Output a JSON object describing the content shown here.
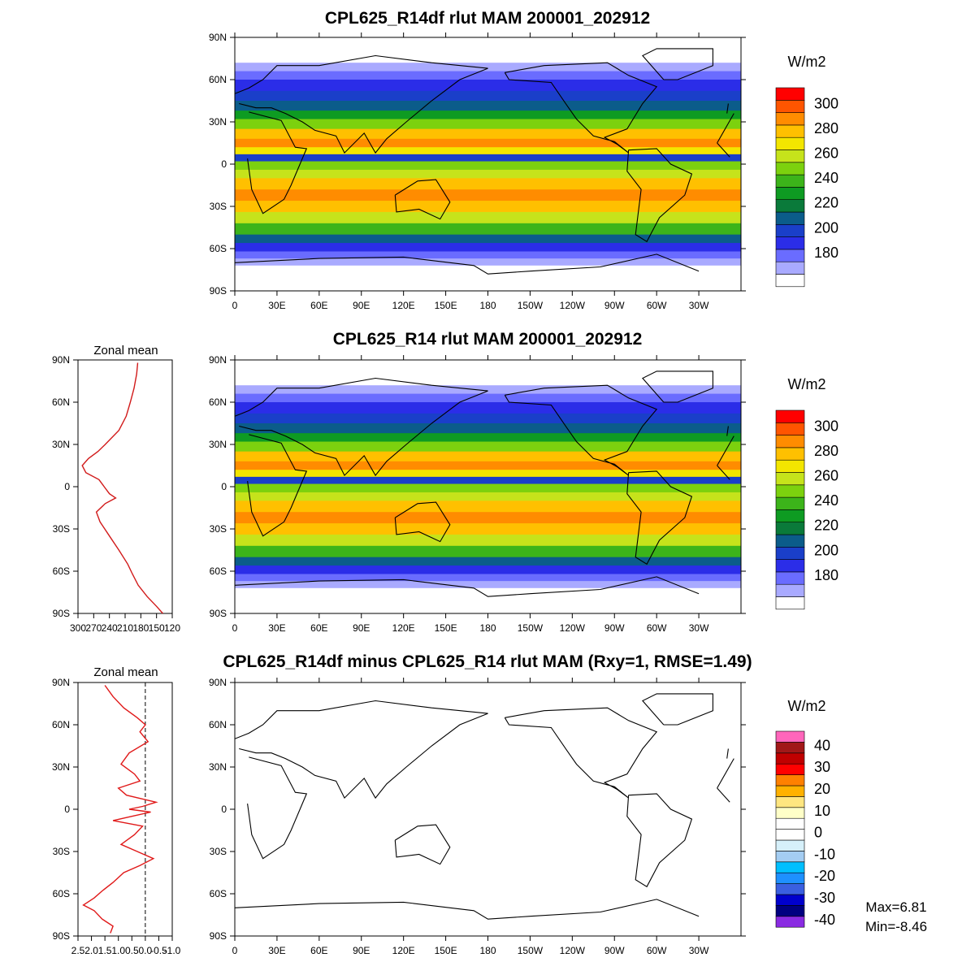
{
  "chart_data": [
    {
      "type": "heatmap",
      "title": "CPL625_R14df rlut MAM 200001_202912",
      "units": "W/m2",
      "lat_ticks": [
        "90N",
        "60N",
        "30N",
        "0",
        "30S",
        "60S",
        "90S"
      ],
      "lon_ticks": [
        "0",
        "30E",
        "60E",
        "90E",
        "120E",
        "150E",
        "180",
        "150W",
        "120W",
        "90W",
        "60W",
        "30W"
      ],
      "colorbar": {
        "labels": [
          "300",
          "280",
          "260",
          "240",
          "220",
          "200",
          "180"
        ],
        "colors": [
          "#ffffff",
          "#a9aaff",
          "#6a6cff",
          "#2b2de8",
          "#1a3fc9",
          "#0b5c8a",
          "#0a7a3a",
          "#0e9b22",
          "#3cb41a",
          "#7cd10e",
          "#c6e31b",
          "#f3e600",
          "#ffc000",
          "#ff8c00",
          "#ff5500",
          "#ff0000"
        ]
      }
    },
    {
      "type": "heatmap",
      "title": "CPL625_R14 rlut MAM 200001_202912",
      "units": "W/m2",
      "lat_ticks": [
        "90N",
        "60N",
        "30N",
        "0",
        "30S",
        "60S",
        "90S"
      ],
      "lon_ticks": [
        "0",
        "30E",
        "60E",
        "90E",
        "120E",
        "150E",
        "180",
        "150W",
        "120W",
        "90W",
        "60W",
        "30W"
      ],
      "colorbar": {
        "labels": [
          "300",
          "280",
          "260",
          "240",
          "220",
          "200",
          "180"
        ],
        "colors": [
          "#ffffff",
          "#a9aaff",
          "#6a6cff",
          "#2b2de8",
          "#1a3fc9",
          "#0b5c8a",
          "#0a7a3a",
          "#0e9b22",
          "#3cb41a",
          "#7cd10e",
          "#c6e31b",
          "#f3e600",
          "#ffc000",
          "#ff8c00",
          "#ff5500",
          "#ff0000"
        ]
      }
    },
    {
      "type": "line",
      "title": "Zonal mean",
      "x_ticks": [
        "300",
        "270",
        "240",
        "210",
        "180",
        "150",
        "120"
      ],
      "y_ticks": [
        "90N",
        "60N",
        "30N",
        "0",
        "30S",
        "60S",
        "90S"
      ],
      "xlim": [
        300,
        120
      ],
      "ylim": [
        -90,
        90
      ],
      "series": [
        {
          "color": "#d11a1a",
          "lat": [
            88,
            80,
            70,
            60,
            50,
            40,
            30,
            25,
            20,
            15,
            10,
            5,
            0,
            -5,
            -8,
            -12,
            -18,
            -25,
            -35,
            -45,
            -55,
            -62,
            -70,
            -78,
            -85,
            -90
          ],
          "value": [
            186,
            188,
            193,
            200,
            208,
            222,
            248,
            262,
            280,
            292,
            285,
            260,
            250,
            240,
            228,
            248,
            265,
            258,
            240,
            222,
            205,
            196,
            185,
            168,
            150,
            138
          ]
        }
      ]
    },
    {
      "type": "heatmap",
      "title": "CPL625_R14df minus CPL625_R14 rlut MAM (Rxy=1, RMSE=1.49)",
      "units": "W/m2",
      "lat_ticks": [
        "90N",
        "60N",
        "30N",
        "0",
        "30S",
        "60S",
        "90S"
      ],
      "lon_ticks": [
        "0",
        "30E",
        "60E",
        "90E",
        "120E",
        "150E",
        "180",
        "150W",
        "120W",
        "90W",
        "60W",
        "30W"
      ],
      "colorbar": {
        "labels": [
          "40",
          "30",
          "20",
          "10",
          "0",
          "-10",
          "-20",
          "-30",
          "-40"
        ],
        "colors": [
          "#8a2be2",
          "#000080",
          "#0000cd",
          "#3a5fe0",
          "#1e90ff",
          "#00bfff",
          "#a4cdf2",
          "#d6f0fa",
          "#ffffff",
          "#ffffff",
          "#ffffc8",
          "#ffe680",
          "#ffb100",
          "#ff8000",
          "#ff0000",
          "#c00000",
          "#a11818",
          "#ff66bb"
        ]
      },
      "stats": {
        "max": "Max=6.81",
        "min": "Min=-8.46"
      }
    },
    {
      "type": "line",
      "title": "Zonal mean",
      "x_ticks": [
        "2.5",
        "2.0",
        "1.5",
        "1.0",
        "0.5",
        "0.0",
        "-0.5",
        "-1.0"
      ],
      "y_ticks": [
        "90N",
        "60N",
        "30N",
        "0",
        "30S",
        "60S",
        "90S"
      ],
      "xlim": [
        2.5,
        -1.0
      ],
      "ylim": [
        -90,
        90
      ],
      "zero_line": 0,
      "series": [
        {
          "color": "#e01818",
          "lat": [
            88,
            80,
            72,
            65,
            60,
            55,
            48,
            40,
            32,
            25,
            20,
            15,
            10,
            5,
            2,
            0,
            -2,
            -5,
            -8,
            -12,
            -18,
            -25,
            -30,
            -35,
            -40,
            -45,
            -52,
            -58,
            -63,
            -68,
            -72,
            -78,
            -83,
            -88
          ],
          "value": [
            1.5,
            1.2,
            0.8,
            0.3,
            0.0,
            0.2,
            -0.1,
            0.6,
            0.9,
            0.4,
            0.2,
            1.0,
            0.7,
            -0.4,
            0.1,
            0.6,
            -0.2,
            0.5,
            1.2,
            0.1,
            0.4,
            0.9,
            0.3,
            -0.3,
            0.2,
            0.8,
            1.2,
            1.6,
            1.9,
            2.3,
            1.9,
            1.6,
            1.2,
            1.3
          ]
        }
      ]
    }
  ]
}
